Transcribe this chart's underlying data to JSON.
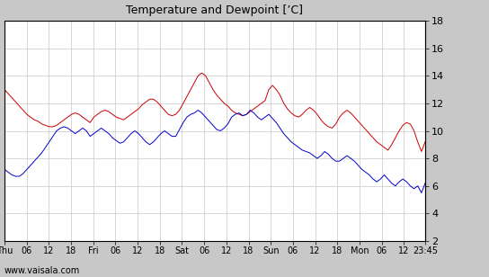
{
  "title": "Temperature and Dewpoint [’C]",
  "yticks": [
    2,
    4,
    6,
    8,
    10,
    12,
    14,
    16,
    18
  ],
  "ylim": [
    2,
    18
  ],
  "bg_color": "#c8c8c8",
  "plot_bg_color": "#ffffff",
  "grid_color": "#c8c8c8",
  "temp_color": "#cc0000",
  "dew_color": "#0000cc",
  "watermark": "www.vaisala.com",
  "xtick_labels": [
    "Thu",
    "06",
    "12",
    "18",
    "Fri",
    "06",
    "12",
    "18",
    "Sat",
    "06",
    "12",
    "18",
    "Sun",
    "06",
    "12",
    "18",
    "Mon",
    "06",
    "12",
    "23:45"
  ],
  "xtick_positions": [
    0,
    6,
    12,
    18,
    24,
    30,
    36,
    42,
    48,
    54,
    60,
    66,
    72,
    78,
    84,
    90,
    96,
    102,
    108,
    113.75
  ],
  "xlim": [
    0,
    113.75
  ],
  "temp_data": [
    13.0,
    12.7,
    12.4,
    12.1,
    11.8,
    11.5,
    11.2,
    11.0,
    10.8,
    10.7,
    10.5,
    10.4,
    10.3,
    10.3,
    10.4,
    10.6,
    10.8,
    11.0,
    11.2,
    11.3,
    11.2,
    11.0,
    10.8,
    10.6,
    11.0,
    11.2,
    11.4,
    11.5,
    11.4,
    11.2,
    11.0,
    10.9,
    10.8,
    11.0,
    11.2,
    11.4,
    11.6,
    11.9,
    12.1,
    12.3,
    12.3,
    12.1,
    11.8,
    11.5,
    11.2,
    11.1,
    11.2,
    11.5,
    12.0,
    12.5,
    13.0,
    13.5,
    14.0,
    14.2,
    14.0,
    13.5,
    13.0,
    12.6,
    12.3,
    12.0,
    11.8,
    11.5,
    11.3,
    11.2,
    11.1,
    11.2,
    11.4,
    11.6,
    11.8,
    12.0,
    12.2,
    13.0,
    13.3,
    13.0,
    12.6,
    12.0,
    11.6,
    11.3,
    11.1,
    11.0,
    11.2,
    11.5,
    11.7,
    11.5,
    11.2,
    10.8,
    10.5,
    10.3,
    10.2,
    10.5,
    11.0,
    11.3,
    11.5,
    11.3,
    11.0,
    10.7,
    10.4,
    10.1,
    9.8,
    9.5,
    9.2,
    9.0,
    8.8,
    8.6,
    9.0,
    9.5,
    10.0,
    10.4,
    10.6,
    10.5,
    10.0,
    9.2,
    8.5,
    9.2
  ],
  "dew_data": [
    7.2,
    7.0,
    6.8,
    6.7,
    6.7,
    6.9,
    7.2,
    7.5,
    7.8,
    8.1,
    8.4,
    8.8,
    9.2,
    9.6,
    10.0,
    10.2,
    10.3,
    10.2,
    10.0,
    9.8,
    10.0,
    10.2,
    10.0,
    9.6,
    9.8,
    10.0,
    10.2,
    10.0,
    9.8,
    9.5,
    9.3,
    9.1,
    9.2,
    9.5,
    9.8,
    10.0,
    9.8,
    9.5,
    9.2,
    9.0,
    9.2,
    9.5,
    9.8,
    10.0,
    9.8,
    9.6,
    9.6,
    10.1,
    10.6,
    11.0,
    11.2,
    11.3,
    11.5,
    11.3,
    11.0,
    10.7,
    10.4,
    10.1,
    10.0,
    10.2,
    10.5,
    11.0,
    11.2,
    11.3,
    11.1,
    11.2,
    11.5,
    11.3,
    11.0,
    10.8,
    11.0,
    11.2,
    10.9,
    10.6,
    10.2,
    9.8,
    9.5,
    9.2,
    9.0,
    8.8,
    8.6,
    8.5,
    8.4,
    8.2,
    8.0,
    8.2,
    8.5,
    8.3,
    8.0,
    7.8,
    7.8,
    8.0,
    8.2,
    8.0,
    7.8,
    7.5,
    7.2,
    7.0,
    6.8,
    6.5,
    6.3,
    6.5,
    6.8,
    6.5,
    6.2,
    6.0,
    6.3,
    6.5,
    6.3,
    6.0,
    5.8,
    6.0,
    5.5,
    6.2
  ]
}
